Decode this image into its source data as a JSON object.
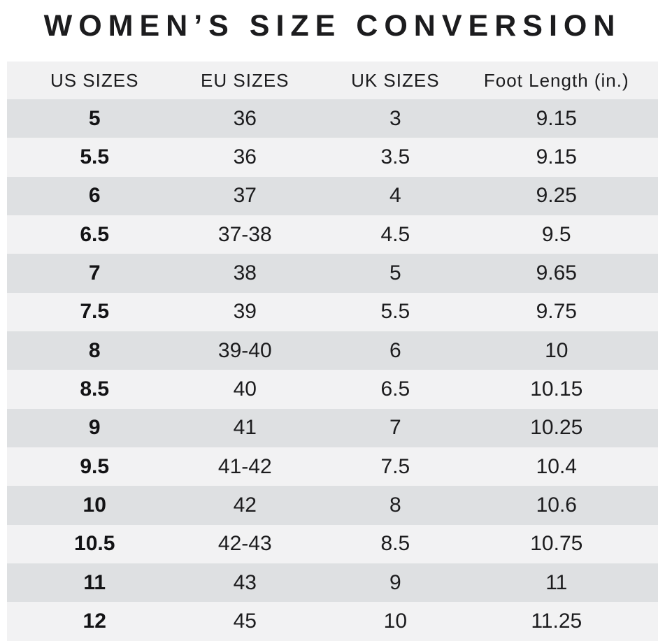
{
  "title": "WOMEN’S SIZE CONVERSION",
  "chart_data": {
    "type": "table",
    "title": "WOMEN’S SIZE CONVERSION",
    "columns": [
      "US SIZES",
      "EU SIZES",
      "UK SIZES",
      "Foot Length (in.)"
    ],
    "rows": [
      [
        "5",
        "36",
        "3",
        "9.15"
      ],
      [
        "5.5",
        "36",
        "3.5",
        "9.15"
      ],
      [
        "6",
        "37",
        "4",
        "9.25"
      ],
      [
        "6.5",
        "37-38",
        "4.5",
        "9.5"
      ],
      [
        "7",
        "38",
        "5",
        "9.65"
      ],
      [
        "7.5",
        "39",
        "5.5",
        "9.75"
      ],
      [
        "8",
        "39-40",
        "6",
        "10"
      ],
      [
        "8.5",
        "40",
        "6.5",
        "10.15"
      ],
      [
        "9",
        "41",
        "7",
        "10.25"
      ],
      [
        "9.5",
        "41-42",
        "7.5",
        "10.4"
      ],
      [
        "10",
        "42",
        "8",
        "10.6"
      ],
      [
        "10.5",
        "42-43",
        "8.5",
        "10.75"
      ],
      [
        "11",
        "43",
        "9",
        "11"
      ],
      [
        "12",
        "45",
        "10",
        "11.25"
      ]
    ],
    "layout": {
      "striped": true,
      "first_data_row_shade": "dark",
      "bold_column": "US SIZES"
    }
  },
  "colors": {
    "background": "#ffffff",
    "header_bg": "#f1f1f2",
    "row_dark": "#dee0e2",
    "row_light": "#f2f2f3",
    "text": "#1c1c1e"
  }
}
